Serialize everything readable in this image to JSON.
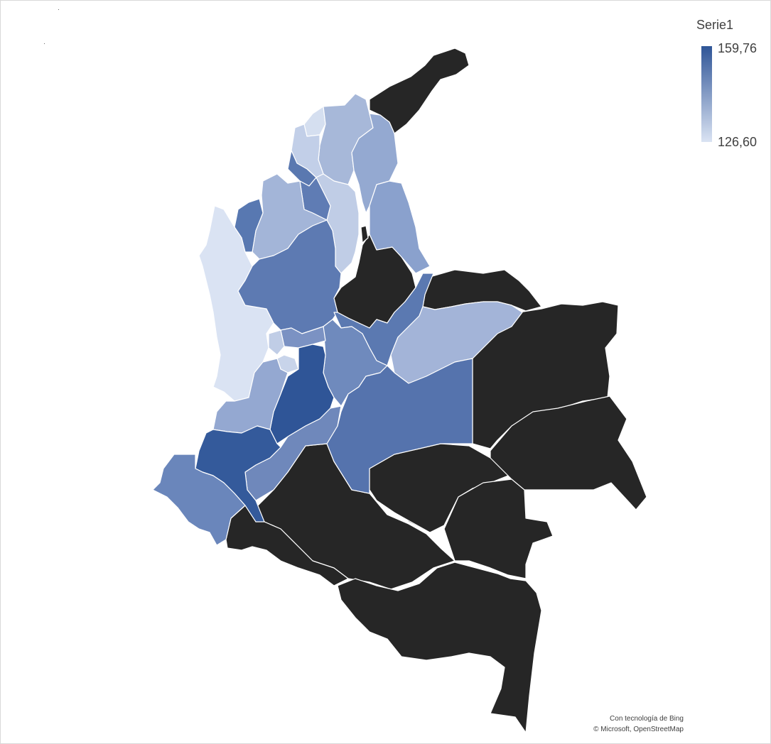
{
  "legend": {
    "title": "Serie1",
    "max_label": "159,76",
    "min_label": "126,60",
    "max_color": "#2f5597",
    "min_color": "#dae3f3"
  },
  "map": {
    "no_data_color": "#262626",
    "border_color": "#ffffff"
  },
  "attribution": {
    "line1": "Con tecnología de Bing",
    "line2": "© Microsoft, OpenStreetMap"
  }
}
